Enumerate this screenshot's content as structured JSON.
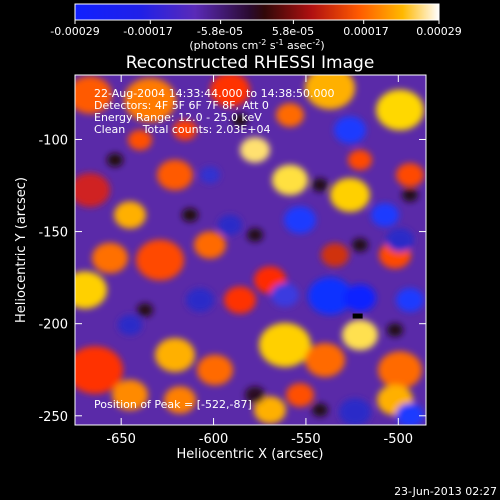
{
  "chart_data": {
    "type": "heatmap",
    "title": "Reconstructed RHESSI Image",
    "xlabel": "Heliocentric X (arcsec)",
    "ylabel": "Heliocentric Y (arcsec)",
    "xlim": [
      -675,
      -485
    ],
    "ylim": [
      -255,
      -65
    ],
    "xticks": [
      -650,
      -600,
      -550,
      -500
    ],
    "yticks": [
      -100,
      -150,
      -200,
      -250
    ],
    "colorbar": {
      "ticks": [
        "-0.00029",
        "-0.00017",
        "-5.8e-05",
        "5.8e-05",
        "0.00017",
        "0.00029"
      ],
      "unit_main": "(photons cm",
      "unit_exp1": "-2",
      "unit_mid": " s",
      "unit_exp2": "-1",
      "unit_end": " asec",
      "unit_exp3": "-2",
      "unit_close": ")",
      "range": [
        -0.00029,
        0.00029
      ]
    },
    "annotations": {
      "time": "22-Aug-2004 14:33:44.000 to 14:38:50.000",
      "detectors": "Detectors: 4F 5F 6F 7F 8F, Att 0",
      "energy": "Energy Range: 12.0 - 25.0 keV",
      "clean": "Clean     Total counts: 2.03E+04",
      "peak": "Position of Peak = [-522,-87]"
    },
    "peak_position": [
      -522,
      -87
    ]
  },
  "footer": {
    "timestamp": "23-Jun-2013 02:27"
  }
}
